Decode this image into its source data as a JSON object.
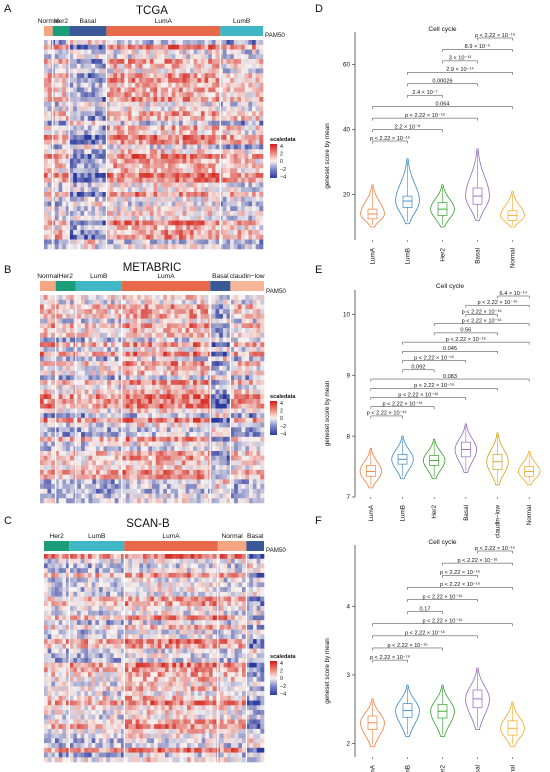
{
  "colors": {
    "Normal": "#f4a582",
    "Her2": "#1b9e77",
    "Basal": "#3b5998",
    "LumA": "#e8694a",
    "LumB": "#41b6c4",
    "claudin-low": "#f7b59a",
    "heat_high": "#e03a2a",
    "heat_mid": "#f7f2f0",
    "heat_low": "#2b3a9e",
    "violin_LumA": "#f47c3c",
    "violin_LumB": "#3a86c8",
    "violin_Her2": "#33a02c",
    "violin_Basal": "#9467bd",
    "violin_claudin": "#d4a017",
    "violin_Normal": "#f5a623"
  },
  "legend": {
    "title": "scaledata",
    "ticks": [
      "4",
      "2",
      "0",
      "−2",
      "−4"
    ]
  },
  "annotation_label": "PAM50",
  "heatmaps": [
    {
      "letter": "A",
      "title": "TCGA",
      "groups": [
        {
          "name": "Normal",
          "fraction": 0.04
        },
        {
          "name": "Her2",
          "fraction": 0.075
        },
        {
          "name": "Basal",
          "fraction": 0.17
        },
        {
          "name": "LumA",
          "fraction": 0.52
        },
        {
          "name": "LumB",
          "fraction": 0.195
        }
      ]
    },
    {
      "letter": "B",
      "title": "METABRIC",
      "groups": [
        {
          "name": "Normal",
          "fraction": 0.07
        },
        {
          "name": "Her2",
          "fraction": 0.09
        },
        {
          "name": "LumB",
          "fraction": 0.205
        },
        {
          "name": "LumA",
          "fraction": 0.395
        },
        {
          "name": "Basal",
          "fraction": 0.09
        },
        {
          "name": "claudin−low",
          "fraction": 0.15
        }
      ]
    },
    {
      "letter": "C",
      "title": "SCAN-B",
      "groups": [
        {
          "name": "Her2",
          "fraction": 0.115
        },
        {
          "name": "LumB",
          "fraction": 0.25
        },
        {
          "name": "LumA",
          "fraction": 0.425
        },
        {
          "name": "Normal",
          "fraction": 0.13
        },
        {
          "name": "Basal",
          "fraction": 0.08
        }
      ]
    }
  ],
  "chart_data": [
    {
      "letter": "D",
      "type": "violin",
      "title": "Cell cycle",
      "ylabel": "geneset score by mean",
      "ylim": [
        6,
        70
      ],
      "yticks": [
        20,
        40,
        60
      ],
      "categories": [
        "LumA",
        "LumB",
        "Her2",
        "Basal",
        "Normal"
      ],
      "color_keys": [
        "violin_LumA",
        "violin_LumB",
        "violin_Her2",
        "violin_Basal",
        "violin_Normal"
      ],
      "median": [
        14,
        18,
        15.5,
        19.5,
        13.5
      ],
      "q1": [
        12.5,
        16,
        13.5,
        17,
        12
      ],
      "q3": [
        15.5,
        19.5,
        17.5,
        22,
        15
      ],
      "min": [
        10,
        11,
        10,
        12,
        10
      ],
      "max": [
        23,
        31,
        23,
        34,
        21
      ],
      "p_values": [
        {
          "label": "p < 2.22 × 10⁻¹⁶",
          "from": 0,
          "to": 1
        },
        {
          "label": "2.2 × 10⁻⁸",
          "from": 0,
          "to": 2
        },
        {
          "label": "p < 2.22 × 10⁻¹⁶",
          "from": 0,
          "to": 3
        },
        {
          "label": "0.064",
          "from": 0,
          "to": 4
        },
        {
          "label": "2.4 × 10⁻⁷",
          "from": 1,
          "to": 2
        },
        {
          "label": "0.00026",
          "from": 1,
          "to": 3
        },
        {
          "label": "2.9 × 10⁻¹⁴",
          "from": 1,
          "to": 4
        },
        {
          "label": "3 × 10⁻¹³",
          "from": 2,
          "to": 3
        },
        {
          "label": "8.9 × 10⁻⁶",
          "from": 2,
          "to": 4
        },
        {
          "label": "p < 2.22 × 10⁻¹⁶",
          "from": 3,
          "to": 4
        }
      ]
    },
    {
      "letter": "E",
      "type": "violin",
      "title": "Cell cycle",
      "ylabel": "geneset score by mean",
      "ylim": [
        7,
        10.4
      ],
      "yticks": [
        7,
        8,
        9,
        10
      ],
      "categories": [
        "LumA",
        "LumB",
        "Her2",
        "Basal",
        "claudin−low",
        "Normal"
      ],
      "color_keys": [
        "violin_LumA",
        "violin_LumB",
        "violin_Her2",
        "violin_Basal",
        "violin_claudin",
        "violin_Normal"
      ],
      "median": [
        7.42,
        7.62,
        7.6,
        7.78,
        7.58,
        7.42
      ],
      "q1": [
        7.34,
        7.54,
        7.52,
        7.66,
        7.45,
        7.34
      ],
      "q3": [
        7.52,
        7.7,
        7.68,
        7.9,
        7.7,
        7.5
      ],
      "min": [
        7.15,
        7.3,
        7.3,
        7.4,
        7.2,
        7.2
      ],
      "max": [
        7.8,
        8.0,
        7.95,
        8.2,
        8.05,
        7.75
      ],
      "p_values": [
        {
          "label": "p < 2.22 × 10⁻¹⁶",
          "from": 0,
          "to": 1
        },
        {
          "label": "p < 2.22 × 10⁻¹⁶",
          "from": 0,
          "to": 2
        },
        {
          "label": "p < 2.22 × 10⁻¹⁶",
          "from": 0,
          "to": 3
        },
        {
          "label": "p < 2.22 × 10⁻¹⁶",
          "from": 0,
          "to": 4
        },
        {
          "label": "0.083",
          "from": 0,
          "to": 5
        },
        {
          "label": "0.092",
          "from": 1,
          "to": 2
        },
        {
          "label": "p < 2.22 × 10⁻¹⁶",
          "from": 1,
          "to": 3
        },
        {
          "label": "0.045",
          "from": 1,
          "to": 4
        },
        {
          "label": "p < 2.22 × 10⁻¹⁶",
          "from": 1,
          "to": 5
        },
        {
          "label": "0.56",
          "from": 2,
          "to": 4
        },
        {
          "label": "p < 2.22 × 10⁻¹⁶",
          "from": 2,
          "to": 5
        },
        {
          "label": "p < 2.22 × 10⁻¹⁶",
          "from": 3,
          "to": 4
        },
        {
          "label": "p < 2.22 × 10⁻¹⁶",
          "from": 3,
          "to": 5
        },
        {
          "label": "6.4 × 10⁻¹⁴",
          "from": 4,
          "to": 5
        }
      ]
    },
    {
      "letter": "F",
      "type": "violin",
      "title": "Cell cycle",
      "ylabel": "geneset score by mean",
      "ylim": [
        1.8,
        4.9
      ],
      "yticks": [
        2,
        3,
        4
      ],
      "categories": [
        "LumA",
        "LumB",
        "Her2",
        "Basal",
        "Normal"
      ],
      "color_keys": [
        "violin_LumA",
        "violin_LumB",
        "violin_Her2",
        "violin_Basal",
        "violin_Normal"
      ],
      "median": [
        2.3,
        2.48,
        2.47,
        2.65,
        2.22
      ],
      "q1": [
        2.2,
        2.38,
        2.37,
        2.52,
        2.12
      ],
      "q3": [
        2.4,
        2.58,
        2.57,
        2.78,
        2.33
      ],
      "min": [
        1.95,
        2.1,
        2.1,
        2.2,
        1.95
      ],
      "max": [
        2.65,
        2.85,
        2.85,
        3.1,
        2.6
      ],
      "p_values": [
        {
          "label": "p < 2.22 × 10⁻¹⁶",
          "from": 0,
          "to": 1
        },
        {
          "label": "p < 2.22 × 10⁻¹⁶",
          "from": 0,
          "to": 2
        },
        {
          "label": "p < 2.22 × 10⁻¹⁶",
          "from": 0,
          "to": 3
        },
        {
          "label": "p < 2.22 × 10⁻¹⁶",
          "from": 0,
          "to": 4
        },
        {
          "label": "0.17",
          "from": 1,
          "to": 2
        },
        {
          "label": "p < 2.22 × 10⁻¹⁶",
          "from": 1,
          "to": 3
        },
        {
          "label": "p < 2.22 × 10⁻¹⁶",
          "from": 1,
          "to": 4
        },
        {
          "label": "p < 2.22 × 10⁻¹⁶",
          "from": 2,
          "to": 3
        },
        {
          "label": "p < 2.22 × 10⁻¹⁶",
          "from": 2,
          "to": 4
        },
        {
          "label": "p < 2.22 × 10⁻¹⁶",
          "from": 3,
          "to": 4
        }
      ]
    }
  ]
}
